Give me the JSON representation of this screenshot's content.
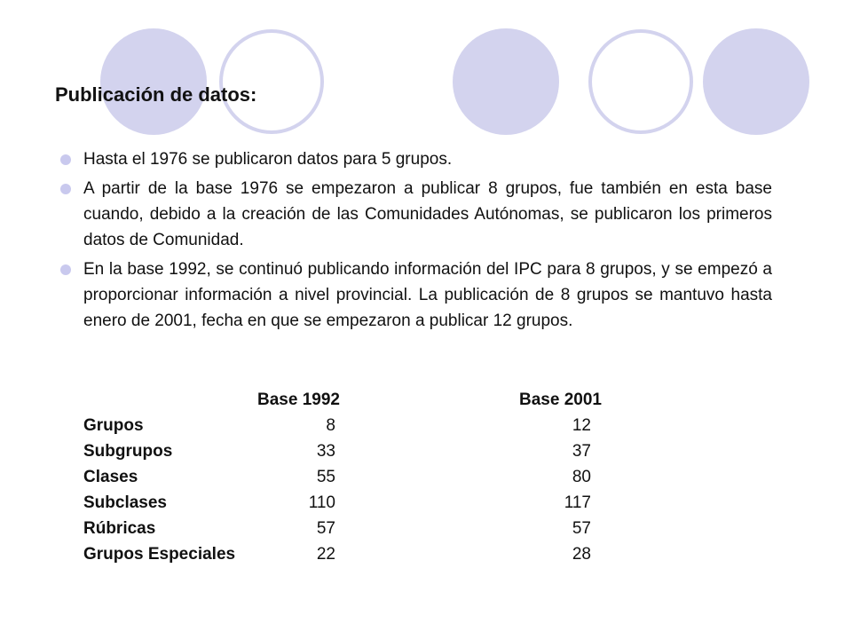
{
  "title": "Publicación de datos:",
  "bullets": [
    "Hasta el 1976 se publicaron datos para 5 grupos.",
    "A partir de la base 1976 se empezaron a publicar 8 grupos,  fue también en esta base cuando, debido a la creación de las Comunidades Autónomas, se publicaron los primeros datos de Comunidad.",
    "En la base 1992, se continuó publicando información del IPC para 8 grupos, y se empezó a proporcionar información a nivel provincial. La publicación de 8 grupos se mantuvo hasta enero de 2001, fecha en que se empezaron a publicar 12 grupos."
  ],
  "table": {
    "headers": [
      "Base 1992",
      "Base 2001"
    ],
    "rows": [
      {
        "label": "Grupos",
        "base1992": "8",
        "base2001": "12"
      },
      {
        "label": "Subgrupos",
        "base1992": "33",
        "base2001": "37"
      },
      {
        "label": "Clases",
        "base1992": "55",
        "base2001": "80"
      },
      {
        "label": "Subclases",
        "base1992": "110",
        "base2001": "117"
      },
      {
        "label": "Rúbricas",
        "base1992": "57",
        "base2001": "57"
      },
      {
        "label": "Grupos Especiales",
        "base1992": "22",
        "base2001": "28"
      }
    ]
  },
  "colors": {
    "circle_fill": "#d3d3ee",
    "circle_ring": "#d3d3ee",
    "bullet": "#c9c9ee"
  }
}
